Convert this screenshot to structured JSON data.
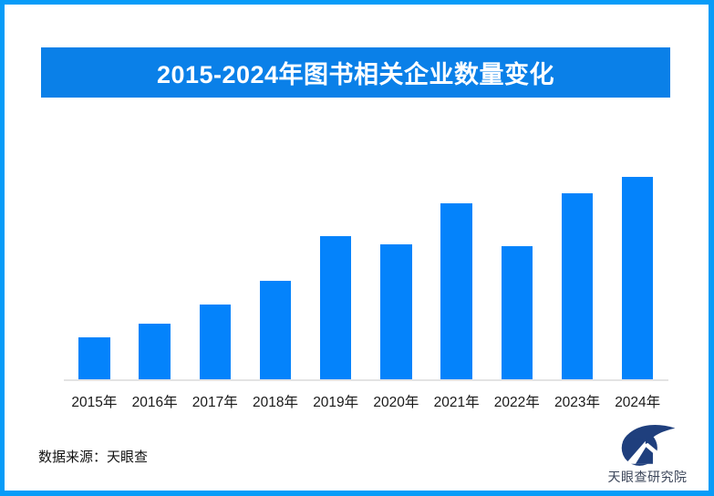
{
  "page": {
    "background": "#ffffff",
    "border_color": "#089cf8"
  },
  "banner": {
    "title": "2015-2024年图书相关企业数量变化",
    "bg_color": "#0a80e8",
    "text_color": "#ffffff"
  },
  "chart_data": {
    "type": "bar",
    "title": "2015-2024年图书相关企业数量变化",
    "categories": [
      "2015年",
      "2016年",
      "2017年",
      "2018年",
      "2019年",
      "2020年",
      "2021年",
      "2022年",
      "2023年",
      "2024年"
    ],
    "values": [
      21,
      28,
      37,
      49,
      71,
      67,
      87,
      66,
      92,
      100
    ],
    "value_scale": "relative bar height, tallest bar (2024) = 100; chart shows no numeric axis, gridlines or data labels",
    "xlabel": "",
    "ylabel": "",
    "ylim": [
      0,
      100
    ],
    "grid": false,
    "legend": "none",
    "bar_color": "#0483fb",
    "axis_line_color": "#e3e3e3"
  },
  "footer": {
    "source": "数据来源：天眼查",
    "logo_text": "天眼查研究院",
    "logo_mark_color": "#1f3f7d",
    "logo_text_color": "#3b4559"
  }
}
